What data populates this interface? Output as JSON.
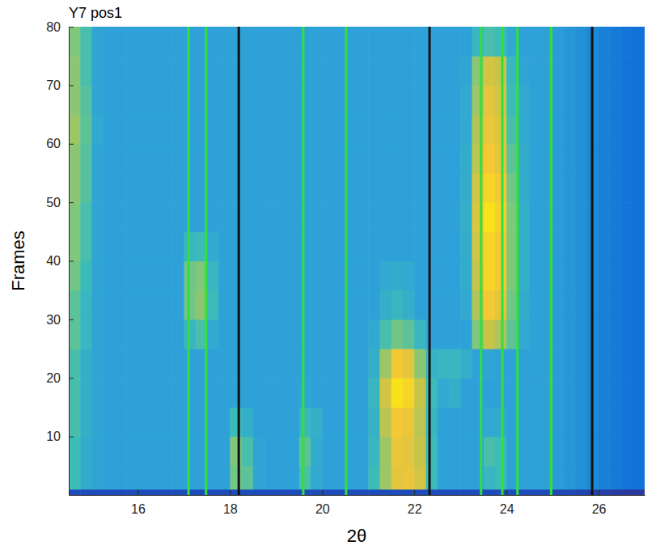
{
  "chart_data": {
    "type": "heatmap",
    "title": "Y7 pos1",
    "x_label": "2θ",
    "y_label": "Frames",
    "xlim": [
      14.5,
      27
    ],
    "ylim": [
      0,
      80
    ],
    "xticks": [
      16,
      18,
      20,
      22,
      24,
      26
    ],
    "yticks": [
      10,
      20,
      30,
      40,
      50,
      60,
      70,
      80
    ],
    "x_edges": [
      14.5,
      14.75,
      15,
      15.25,
      15.5,
      15.75,
      16,
      16.25,
      16.5,
      16.75,
      17,
      17.25,
      17.5,
      17.75,
      18,
      18.25,
      18.5,
      18.75,
      19,
      19.25,
      19.5,
      19.75,
      20,
      20.25,
      20.5,
      20.75,
      21,
      21.25,
      21.5,
      21.75,
      22,
      22.25,
      22.5,
      22.75,
      23,
      23.25,
      23.5,
      23.75,
      24,
      24.25,
      24.5,
      24.75,
      25,
      25.25,
      25.5,
      25.75,
      26,
      26.25,
      26.5,
      26.75,
      27
    ],
    "y_edges": [
      0,
      1,
      5,
      10,
      15,
      20,
      25,
      30,
      35,
      40,
      45,
      50,
      55,
      60,
      65,
      70,
      75,
      80
    ],
    "color_range": [
      0,
      100
    ],
    "cells": [
      [
        12,
        12,
        12,
        12,
        12,
        12,
        12,
        12,
        12,
        12,
        12,
        12,
        12,
        12,
        12,
        12,
        12,
        12,
        12,
        12,
        12,
        12,
        12,
        12,
        12,
        12,
        12,
        12,
        12,
        12,
        12,
        12,
        12,
        12,
        12,
        12,
        12,
        12,
        12,
        12,
        12,
        12,
        10,
        10,
        9,
        8,
        7,
        6,
        5,
        5
      ],
      [
        50,
        45,
        43,
        42,
        42,
        42,
        42,
        42,
        42,
        42,
        42,
        42,
        42,
        42,
        58,
        55,
        43,
        42,
        42,
        42,
        52,
        44,
        42,
        42,
        42,
        42,
        50,
        65,
        80,
        82,
        75,
        50,
        42,
        42,
        42,
        42,
        48,
        50,
        42,
        42,
        42,
        42,
        40,
        38,
        36,
        33,
        30,
        28,
        26,
        25
      ],
      [
        50,
        45,
        43,
        42,
        42,
        42,
        42,
        42,
        42,
        42,
        42,
        42,
        42,
        42,
        60,
        52,
        43,
        42,
        42,
        42,
        55,
        45,
        42,
        42,
        42,
        42,
        48,
        65,
        82,
        80,
        72,
        50,
        42,
        42,
        42,
        42,
        52,
        50,
        42,
        42,
        42,
        42,
        40,
        38,
        36,
        33,
        30,
        28,
        26,
        25
      ],
      [
        52,
        46,
        43,
        42,
        42,
        42,
        42,
        42,
        42,
        42,
        42,
        42,
        42,
        42,
        50,
        46,
        42,
        42,
        42,
        42,
        48,
        46,
        42,
        42,
        42,
        42,
        47,
        70,
        85,
        82,
        70,
        48,
        42,
        42,
        42,
        42,
        44,
        44,
        42,
        42,
        42,
        42,
        40,
        38,
        36,
        33,
        30,
        28,
        26,
        25
      ],
      [
        52,
        46,
        43,
        42,
        42,
        42,
        42,
        42,
        42,
        42,
        42,
        42,
        42,
        42,
        42,
        42,
        42,
        42,
        42,
        42,
        43,
        42,
        42,
        42,
        42,
        42,
        48,
        75,
        95,
        90,
        72,
        50,
        44,
        46,
        42,
        42,
        42,
        42,
        42,
        42,
        42,
        42,
        40,
        38,
        36,
        33,
        30,
        28,
        26,
        25
      ],
      [
        52,
        46,
        43,
        42,
        42,
        42,
        42,
        42,
        42,
        42,
        42,
        42,
        42,
        42,
        42,
        42,
        42,
        42,
        42,
        42,
        42,
        42,
        42,
        42,
        42,
        42,
        46,
        65,
        85,
        80,
        62,
        47,
        48,
        48,
        46,
        42,
        43,
        42,
        42,
        42,
        42,
        42,
        40,
        38,
        36,
        33,
        30,
        28,
        26,
        25
      ],
      [
        55,
        48,
        43,
        42,
        42,
        42,
        42,
        42,
        42,
        42,
        48,
        52,
        44,
        42,
        42,
        42,
        42,
        42,
        42,
        42,
        42,
        42,
        42,
        42,
        42,
        42,
        44,
        52,
        58,
        55,
        48,
        42,
        42,
        42,
        42,
        60,
        72,
        68,
        55,
        44,
        42,
        42,
        40,
        38,
        36,
        33,
        30,
        28,
        26,
        25
      ],
      [
        55,
        48,
        43,
        42,
        42,
        42,
        42,
        42,
        42,
        42,
        58,
        62,
        50,
        42,
        42,
        42,
        42,
        42,
        42,
        42,
        42,
        42,
        42,
        42,
        42,
        42,
        42,
        46,
        48,
        46,
        42,
        42,
        42,
        42,
        44,
        68,
        85,
        80,
        58,
        45,
        42,
        42,
        40,
        38,
        36,
        33,
        30,
        28,
        26,
        25
      ],
      [
        58,
        50,
        43,
        42,
        42,
        42,
        42,
        42,
        42,
        42,
        58,
        60,
        48,
        42,
        42,
        42,
        42,
        42,
        42,
        42,
        42,
        42,
        42,
        42,
        42,
        42,
        42,
        44,
        45,
        44,
        42,
        42,
        42,
        42,
        45,
        72,
        90,
        85,
        60,
        46,
        42,
        42,
        40,
        38,
        36,
        33,
        30,
        28,
        26,
        25
      ],
      [
        60,
        52,
        43,
        42,
        42,
        42,
        42,
        42,
        42,
        42,
        48,
        50,
        44,
        42,
        42,
        42,
        42,
        42,
        42,
        42,
        42,
        42,
        42,
        42,
        42,
        42,
        42,
        42,
        42,
        42,
        42,
        42,
        42,
        42,
        45,
        75,
        90,
        85,
        60,
        46,
        42,
        42,
        40,
        38,
        36,
        33,
        30,
        28,
        26,
        25
      ],
      [
        60,
        52,
        43,
        42,
        42,
        42,
        42,
        42,
        42,
        42,
        42,
        42,
        42,
        42,
        42,
        42,
        42,
        42,
        42,
        42,
        42,
        42,
        42,
        42,
        42,
        42,
        42,
        42,
        42,
        42,
        42,
        42,
        42,
        42,
        46,
        78,
        95,
        88,
        60,
        46,
        42,
        42,
        40,
        38,
        36,
        33,
        30,
        28,
        26,
        25
      ],
      [
        62,
        54,
        43,
        42,
        42,
        42,
        42,
        42,
        42,
        42,
        42,
        42,
        42,
        42,
        42,
        42,
        42,
        42,
        42,
        42,
        42,
        42,
        42,
        42,
        42,
        42,
        42,
        42,
        42,
        42,
        42,
        42,
        42,
        42,
        45,
        75,
        90,
        85,
        58,
        45,
        42,
        42,
        40,
        38,
        36,
        33,
        30,
        28,
        26,
        25
      ],
      [
        62,
        54,
        43,
        42,
        42,
        42,
        42,
        42,
        42,
        42,
        42,
        42,
        42,
        42,
        42,
        42,
        42,
        42,
        42,
        42,
        42,
        42,
        42,
        42,
        42,
        42,
        42,
        42,
        42,
        42,
        42,
        42,
        42,
        42,
        45,
        70,
        85,
        80,
        55,
        45,
        42,
        42,
        40,
        38,
        36,
        33,
        30,
        28,
        26,
        25
      ],
      [
        65,
        55,
        44,
        42,
        42,
        42,
        42,
        42,
        42,
        42,
        42,
        42,
        42,
        42,
        42,
        42,
        42,
        42,
        42,
        42,
        42,
        42,
        42,
        42,
        42,
        42,
        42,
        42,
        42,
        42,
        42,
        42,
        42,
        42,
        44,
        68,
        82,
        78,
        52,
        44,
        42,
        42,
        40,
        38,
        36,
        33,
        30,
        28,
        26,
        25
      ],
      [
        62,
        54,
        43,
        42,
        42,
        42,
        42,
        42,
        42,
        42,
        42,
        42,
        42,
        42,
        42,
        42,
        42,
        42,
        42,
        42,
        42,
        42,
        42,
        42,
        42,
        42,
        42,
        42,
        42,
        42,
        42,
        42,
        42,
        42,
        44,
        65,
        80,
        75,
        50,
        44,
        42,
        42,
        40,
        38,
        36,
        33,
        30,
        28,
        26,
        25
      ],
      [
        62,
        52,
        43,
        42,
        42,
        42,
        42,
        42,
        42,
        42,
        42,
        42,
        42,
        42,
        42,
        42,
        42,
        42,
        42,
        42,
        42,
        42,
        42,
        42,
        42,
        42,
        42,
        42,
        42,
        42,
        42,
        42,
        42,
        42,
        43,
        62,
        75,
        72,
        48,
        43,
        42,
        42,
        40,
        38,
        36,
        33,
        30,
        28,
        26,
        25
      ],
      [
        60,
        52,
        43,
        42,
        42,
        42,
        42,
        42,
        42,
        42,
        42,
        42,
        42,
        42,
        42,
        42,
        42,
        42,
        42,
        42,
        42,
        42,
        42,
        42,
        42,
        42,
        42,
        42,
        42,
        42,
        42,
        42,
        42,
        42,
        42,
        48,
        52,
        50,
        44,
        42,
        42,
        42,
        40,
        38,
        36,
        33,
        30,
        28,
        26,
        25
      ]
    ],
    "lines": [
      {
        "x": 17.1,
        "color": "#33e03a"
      },
      {
        "x": 17.48,
        "color": "#33e03a"
      },
      {
        "x": 18.19,
        "color": "#111111"
      },
      {
        "x": 19.59,
        "color": "#33e03a"
      },
      {
        "x": 20.52,
        "color": "#33e03a"
      },
      {
        "x": 22.33,
        "color": "#111111"
      },
      {
        "x": 23.45,
        "color": "#33e03a"
      },
      {
        "x": 23.91,
        "color": "#33e03a"
      },
      {
        "x": 24.24,
        "color": "#33e03a"
      },
      {
        "x": 24.97,
        "color": "#33e03a"
      },
      {
        "x": 25.86,
        "color": "#111111"
      }
    ]
  }
}
